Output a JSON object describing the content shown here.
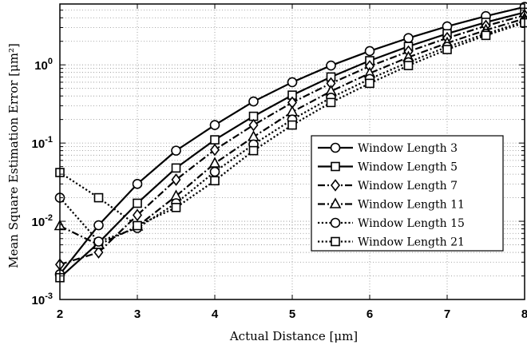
{
  "chart_data": {
    "type": "line",
    "xlabel": "Actual Distance [μm]",
    "ylabel": "Mean Square Estimation Error [μm²]",
    "xlim": [
      2,
      8
    ],
    "ylim": [
      0.001,
      6
    ],
    "yscale": "log",
    "grid": true,
    "legend_position": "right-center",
    "x_ticks": [
      "2",
      "3",
      "4",
      "5",
      "6",
      "7",
      "8"
    ],
    "y_ticks": [
      {
        "base": "10",
        "exp": "-3",
        "value": 0.001
      },
      {
        "base": "10",
        "exp": "-2",
        "value": 0.01
      },
      {
        "base": "10",
        "exp": "-1",
        "value": 0.1
      },
      {
        "base": "10",
        "exp": "0",
        "value": 1
      }
    ],
    "x": [
      2,
      2.5,
      3,
      3.5,
      4,
      4.5,
      5,
      5.5,
      6,
      6.5,
      7,
      7.5,
      8
    ],
    "series": [
      {
        "name": "Window Length 3",
        "marker": "circle",
        "dash": "solid",
        "values": [
          0.0021,
          0.0089,
          0.03,
          0.08,
          0.17,
          0.34,
          0.6,
          0.98,
          1.5,
          2.2,
          3.1,
          4.2,
          5.5
        ]
      },
      {
        "name": "Window Length 5",
        "marker": "square",
        "dash": "solid",
        "values": [
          0.0019,
          0.0053,
          0.017,
          0.048,
          0.11,
          0.22,
          0.41,
          0.7,
          1.13,
          1.72,
          2.5,
          3.5,
          4.7
        ]
      },
      {
        "name": "Window Length 7",
        "marker": "diamond",
        "dash": "dashdot",
        "values": [
          0.0028,
          0.004,
          0.012,
          0.034,
          0.082,
          0.17,
          0.33,
          0.58,
          0.96,
          1.48,
          2.2,
          3.15,
          4.3
        ]
      },
      {
        "name": "Window Length 11",
        "marker": "triangle",
        "dash": "dashdot",
        "values": [
          0.0087,
          0.005,
          0.0086,
          0.021,
          0.055,
          0.12,
          0.25,
          0.46,
          0.78,
          1.25,
          1.9,
          2.78,
          3.9
        ]
      },
      {
        "name": "Window Length 15",
        "marker": "circle",
        "dash": "dotted",
        "values": [
          0.02,
          0.0055,
          0.0082,
          0.017,
          0.043,
          0.096,
          0.2,
          0.38,
          0.66,
          1.08,
          1.7,
          2.5,
          3.6
        ]
      },
      {
        "name": "Window Length 21",
        "marker": "square",
        "dash": "dotted",
        "values": [
          0.042,
          0.02,
          0.0088,
          0.015,
          0.033,
          0.08,
          0.17,
          0.33,
          0.58,
          0.98,
          1.57,
          2.38,
          3.45
        ]
      }
    ]
  }
}
